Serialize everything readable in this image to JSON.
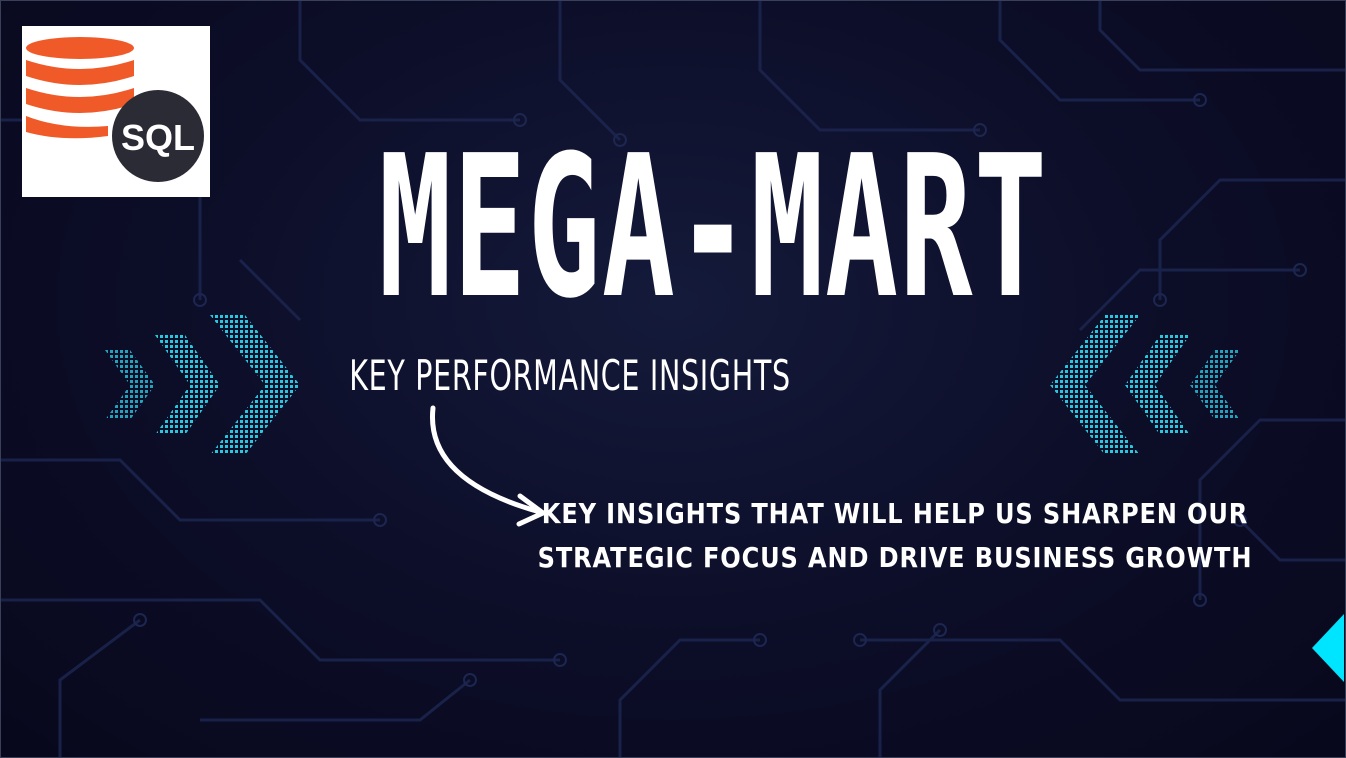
{
  "logo": {
    "text": "SQL"
  },
  "title": "MEGA-MART",
  "subtitle": "KEY PERFORMANCE INSIGHTS",
  "insight": {
    "line1": "KEY INSIGHTS THAT WILL HELP US SHARPEN OUR",
    "line2": "STRATEGIC FOCUS AND DRIVE BUSINESS GROWTH"
  },
  "colors": {
    "background": "#0c0d27",
    "circuit": "#1e2b55",
    "accent": "#00e5ff",
    "logo_orange": "#f05a28",
    "logo_dark": "#2b2b36",
    "text": "#ffffff"
  }
}
